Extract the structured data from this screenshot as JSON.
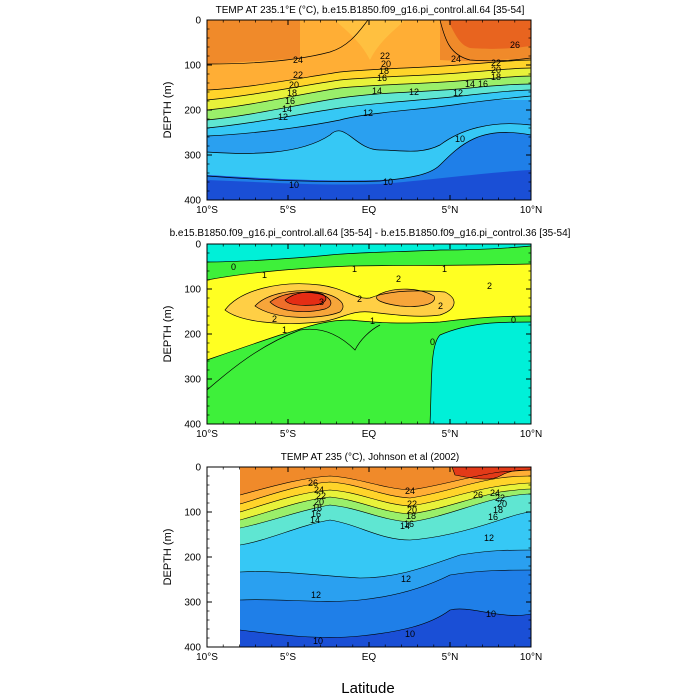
{
  "figure": {
    "xlabel": "Latitude"
  },
  "chart_data": [
    {
      "type": "heatmap",
      "title": "TEMP AT 235.1°E (°C), b.e15.B1850.f09_g16.pi_control.all.64 [35-54]",
      "xlabel": "",
      "ylabel": "DEPTH (m)",
      "xlim": [
        -10,
        10
      ],
      "ylim": [
        400,
        0
      ],
      "xticks": [
        "10°S",
        "5°S",
        "EQ",
        "5°N",
        "10°N"
      ],
      "yticks": [
        "0",
        "100",
        "200",
        "300",
        "400"
      ],
      "contour_labels": [
        "24",
        "22",
        "20",
        "18",
        "16",
        "14",
        "12",
        "12",
        "10",
        "10",
        "26",
        "24",
        "22",
        "20",
        "18",
        "16",
        "14",
        "12",
        "22",
        "20",
        "18",
        "16",
        "14",
        "12",
        "10"
      ],
      "colormap": [
        "#1a4fd6",
        "#1f7fe8",
        "#2aa0f0",
        "#36c8f5",
        "#5fe6d2",
        "#9aef6a",
        "#e8f23a",
        "#ffd42a",
        "#ffae35",
        "#f08a2a",
        "#e8641f",
        "#e33a18"
      ]
    },
    {
      "type": "heatmap",
      "title": "b.e15.B1850.f09_g16.pi_control.all.64 [35-54] - b.e15.B1850.f09_g16.pi_control.36 [35-54]",
      "xlabel": "",
      "ylabel": "DEPTH (m)",
      "xlim": [
        -10,
        10
      ],
      "ylim": [
        400,
        0
      ],
      "xticks": [
        "10°S",
        "5°S",
        "EQ",
        "5°N",
        "10°N"
      ],
      "yticks": [
        "0",
        "100",
        "200",
        "300",
        "400"
      ],
      "contour_labels": [
        "0",
        "1",
        "1",
        "1",
        "2",
        "2",
        "2",
        "3",
        "2",
        "2",
        "1",
        "1",
        "0",
        "0"
      ],
      "colormap": [
        "#00f0d8",
        "#3ef03a",
        "#ffff22",
        "#ffcf45",
        "#f7a53a",
        "#ef6e2a",
        "#e52d14"
      ]
    },
    {
      "type": "heatmap",
      "title": "TEMP AT 235 (°C), Johnson et al (2002)",
      "xlabel": "Latitude",
      "ylabel": "DEPTH (m)",
      "xlim": [
        -10,
        10
      ],
      "ylim": [
        400,
        0
      ],
      "xticks": [
        "10°S",
        "5°S",
        "EQ",
        "5°N",
        "10°N"
      ],
      "yticks": [
        "0",
        "100",
        "200",
        "300",
        "400"
      ],
      "contour_labels": [
        "26",
        "24",
        "22",
        "20",
        "18",
        "16",
        "14",
        "24",
        "22",
        "20",
        "18",
        "16",
        "14",
        "26",
        "24",
        "22",
        "20",
        "18",
        "16",
        "12",
        "12",
        "12",
        "10",
        "10",
        "10"
      ],
      "colormap": [
        "#1a4fd6",
        "#1f7fe8",
        "#2aa0f0",
        "#36c8f5",
        "#5fe6d2",
        "#9aef6a",
        "#e8f23a",
        "#ffd42a",
        "#ffae35",
        "#f08a2a",
        "#e8641f",
        "#e33a18"
      ]
    }
  ]
}
